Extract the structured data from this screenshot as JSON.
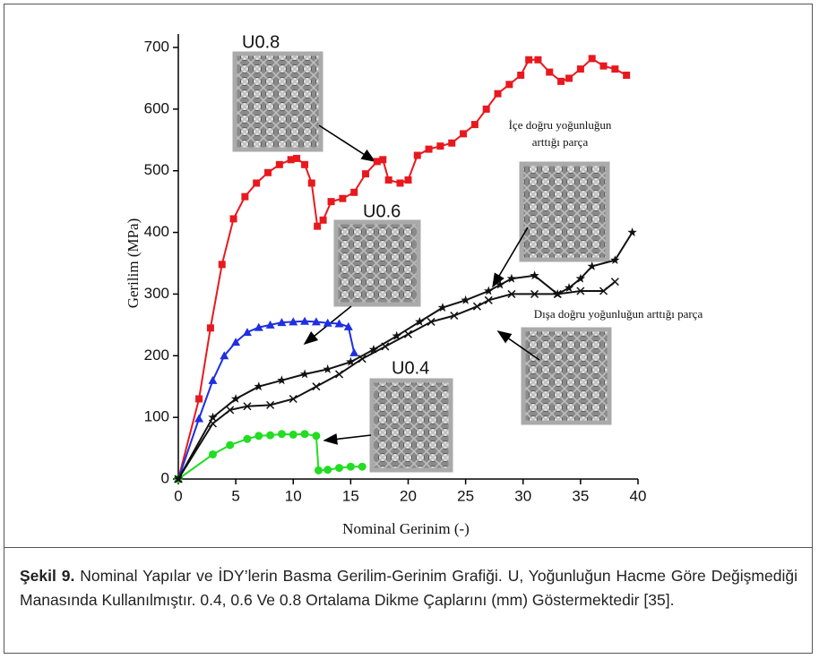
{
  "chart_data": {
    "type": "line",
    "xlabel": "Nominal Gerinim (-)",
    "ylabel": "Gerilim (MPa)",
    "xlim": [
      0,
      40
    ],
    "ylim": [
      0,
      700
    ],
    "xticks": [
      0,
      5,
      10,
      15,
      20,
      25,
      30,
      35,
      40
    ],
    "yticks": [
      0,
      100,
      200,
      300,
      400,
      500,
      600,
      700
    ],
    "series": [
      {
        "color": "#e8191e",
        "marker": "square",
        "x": [
          0,
          1.8,
          2.8,
          3.8,
          4.8,
          5.8,
          6.8,
          7.8,
          8.8,
          9.8,
          10.3,
          11,
          11.6,
          12.1,
          12.6,
          13.3,
          14.3,
          15.3,
          16.3,
          17.3,
          17.8,
          18.3,
          19.3,
          20,
          20.8,
          21.8,
          22.8,
          23.8,
          24.8,
          25.8,
          26.8,
          27.8,
          28.8,
          29.8,
          30.5,
          31.3,
          32.3,
          33.3,
          34,
          35,
          36,
          37,
          38,
          39
        ],
        "values": [
          0,
          130,
          245,
          348,
          422,
          458,
          480,
          497,
          510,
          518,
          520,
          510,
          480,
          410,
          420,
          450,
          455,
          465,
          495,
          515,
          518,
          485,
          480,
          485,
          525,
          535,
          540,
          545,
          560,
          575,
          600,
          625,
          640,
          655,
          680,
          680,
          660,
          645,
          650,
          665,
          682,
          670,
          665,
          655
        ]
      },
      {
        "color": "#1f2fe0",
        "marker": "triangle",
        "x": [
          0,
          1.8,
          3,
          4,
          5,
          6,
          7,
          8,
          9,
          10,
          11,
          12,
          13,
          14,
          14.8,
          15.3
        ],
        "values": [
          0,
          98,
          160,
          200,
          222,
          238,
          246,
          250,
          254,
          255,
          256,
          255,
          253,
          252,
          247,
          205
        ]
      },
      {
        "color": "#22dd22",
        "marker": "circle",
        "x": [
          0,
          3,
          4.5,
          6,
          7,
          8,
          9,
          10,
          11,
          12,
          12.2,
          13,
          14,
          15,
          16
        ],
        "values": [
          0,
          40,
          55,
          65,
          70,
          71,
          73,
          72,
          73,
          70,
          14,
          15,
          18,
          20,
          20
        ]
      },
      {
        "color": "#111111",
        "marker": "star",
        "x": [
          0,
          3,
          5,
          7,
          9,
          11,
          13,
          15,
          17,
          19,
          21,
          23,
          25,
          27,
          28,
          29,
          31,
          33,
          34,
          35,
          36,
          38,
          39.5
        ],
        "values": [
          0,
          100,
          130,
          150,
          160,
          170,
          178,
          190,
          210,
          232,
          255,
          278,
          290,
          305,
          315,
          325,
          330,
          300,
          310,
          325,
          345,
          355,
          400
        ]
      },
      {
        "color": "#111111",
        "marker": "x",
        "x": [
          0,
          3,
          4.5,
          6,
          8,
          10,
          12,
          14,
          16,
          18,
          20,
          22,
          24,
          26,
          27,
          29,
          31,
          33,
          35,
          37,
          38
        ],
        "values": [
          0,
          90,
          112,
          118,
          120,
          130,
          150,
          170,
          195,
          215,
          235,
          255,
          265,
          280,
          290,
          300,
          300,
          300,
          305,
          305,
          320
        ]
      }
    ],
    "annotations": [
      "U0.8",
      "U0.6",
      "U0.4",
      "İçe doğru yoğunluğun",
      "arttığı parça",
      "Dışa doğru yoğunluğun arttığı parça"
    ]
  },
  "caption": {
    "label": "Şekil 9.",
    "text": "Nominal Yapılar ve İDY’lerin Basma Gerilim-Gerinim Grafiği. U, Yoğunluğun Hacme Göre Değişmediği Manasında Kullanılmıştır. 0.4, 0.6 Ve 0.8 Ortalama Dikme Çaplarını (mm) Göstermektedir [35]."
  }
}
